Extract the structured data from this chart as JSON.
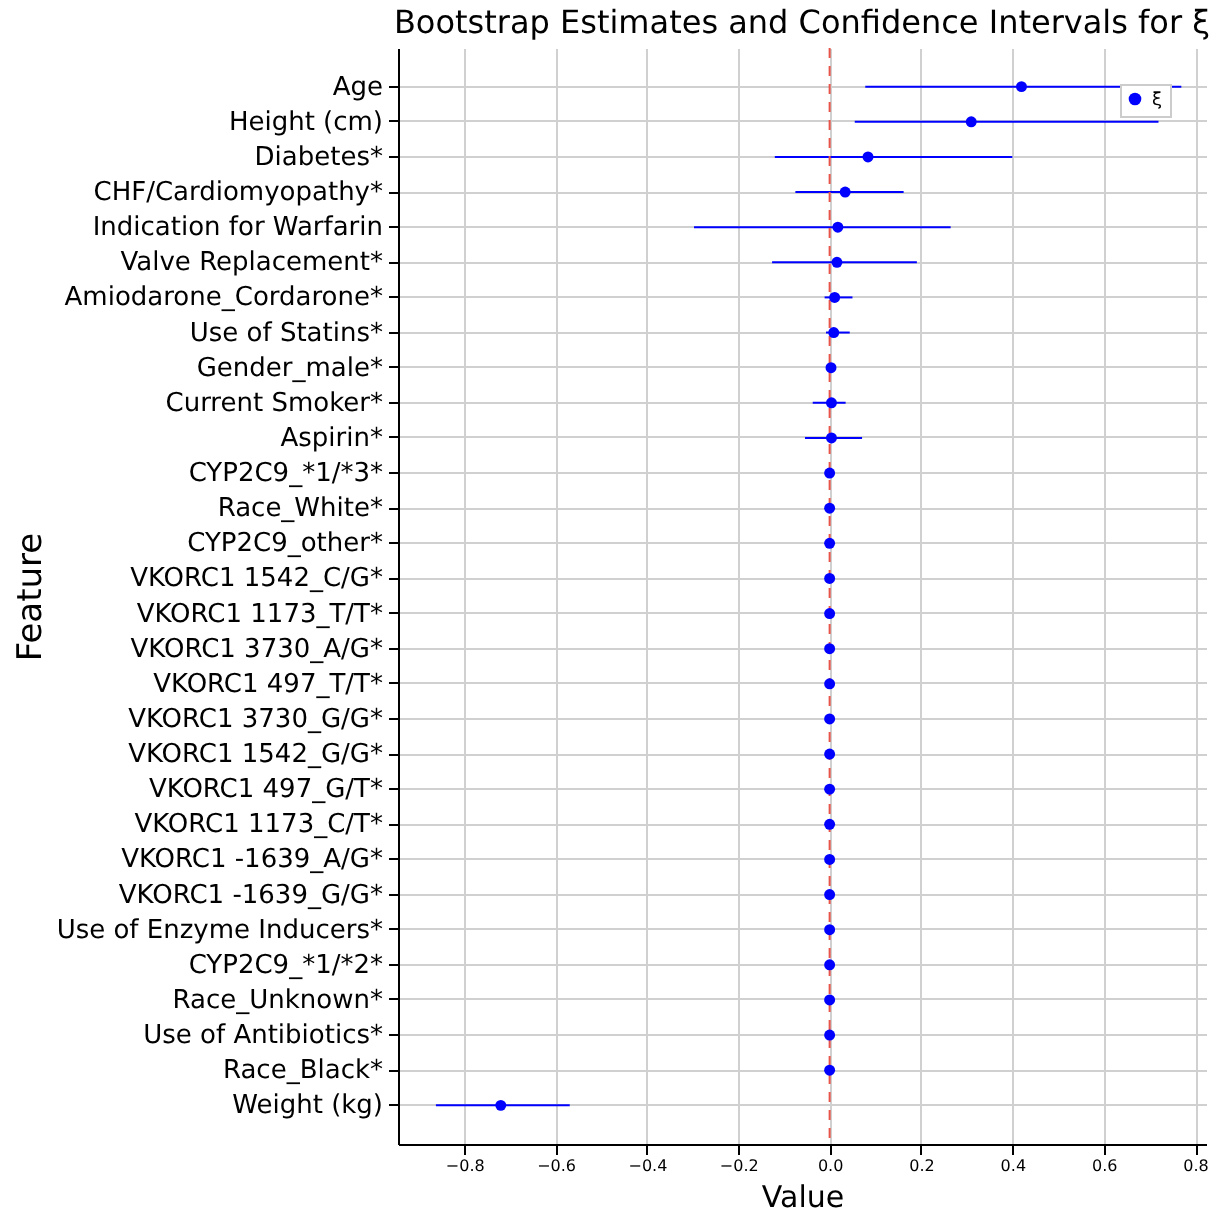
{
  "chart_data": {
    "type": "scatter",
    "orientation": "horizontal",
    "title": "Bootstrap Estimates and Confidence Intervals for ξ",
    "xlabel": "Value",
    "ylabel": "Feature",
    "categories": [
      "Age",
      "Height (cm)",
      "Diabetes*",
      "CHF/Cardiomyopathy*",
      "Indication for Warfarin",
      "Valve Replacement*",
      "Amiodarone_Cordarone*",
      "Use of Statins*",
      "Gender_male*",
      "Current Smoker*",
      "Aspirin*",
      "CYP2C9_*1/*3*",
      "Race_White*",
      "CYP2C9_other*",
      "VKORC1 1542_C/G*",
      "VKORC1 1173_T/T*",
      "VKORC1 3730_A/G*",
      "VKORC1 497_T/T*",
      "VKORC1 3730_G/G*",
      "VKORC1 1542_G/G*",
      "VKORC1 497_G/T*",
      "VKORC1 1173_C/T*",
      "VKORC1 -1639_A/G*",
      "VKORC1 -1639_G/G*",
      "Use of Enzyme Inducers*",
      "CYP2C9_*1/*2*",
      "Race_Unknown*",
      "Use of Antibiotics*",
      "Race_Black*",
      "Weight (kg)"
    ],
    "series": [
      {
        "name": "ξ",
        "color": "#0000ff",
        "values": [
          0.42,
          0.31,
          0.084,
          0.034,
          0.018,
          0.016,
          0.011,
          0.009,
          0.003,
          0.004,
          0.004,
          0,
          0,
          0,
          0,
          0,
          0,
          0,
          0,
          0,
          0,
          0,
          0,
          0,
          0,
          0,
          0,
          0,
          0,
          -0.72
        ],
        "errors": [
          [
            0.078,
            0.77
          ],
          [
            0.055,
            0.72
          ],
          [
            -0.12,
            0.4
          ],
          [
            -0.075,
            0.162
          ],
          [
            -0.297,
            0.265
          ],
          [
            -0.126,
            0.191
          ],
          [
            -0.011,
            0.05
          ],
          [
            -0.008,
            0.044
          ],
          null,
          [
            -0.037,
            0.035
          ],
          [
            -0.054,
            0.071
          ],
          null,
          null,
          null,
          null,
          null,
          null,
          null,
          null,
          null,
          null,
          null,
          null,
          null,
          null,
          null,
          null,
          null,
          null,
          [
            -0.862,
            -0.569
          ]
        ]
      }
    ],
    "xlim": [
      -0.945,
      0.824
    ],
    "xticks": [
      -0.8,
      -0.6,
      -0.4,
      -0.2,
      {
        "value": 0,
        "label": "0.0"
      },
      0.2,
      0.4,
      0.6,
      0.8
    ],
    "ref_lines": [
      {
        "axis": "x",
        "value": 0,
        "color": "#e8534a",
        "line_style": "dashed"
      }
    ],
    "grid": true,
    "legend": "top right",
    "marker": "circle"
  }
}
